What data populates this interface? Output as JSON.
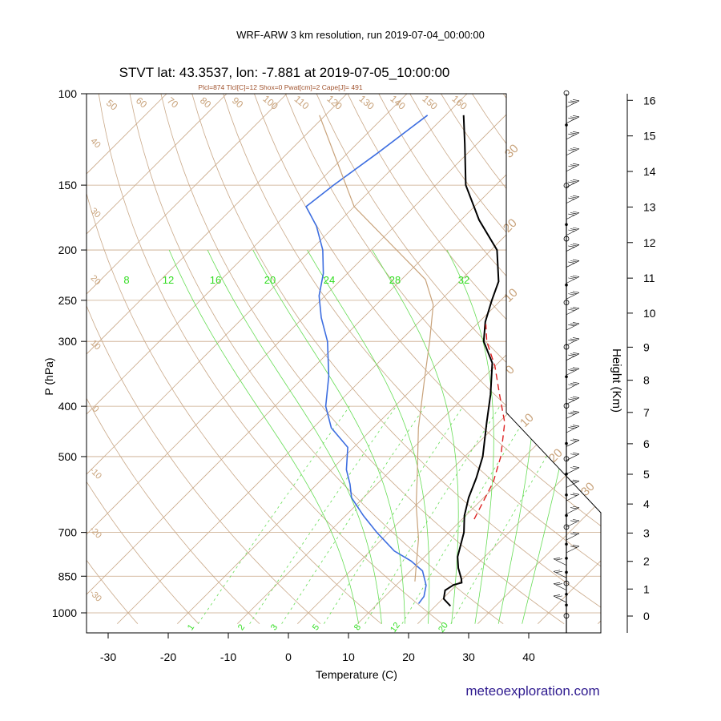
{
  "header": {
    "run_title": "WRF-ARW 3 km resolution, run 2019-07-04_00:00:00",
    "station_title": "STVT lat: 43.3537, lon: -7.881 at 2019-07-05_10:00:00",
    "indices": "Plcl=874 Tlcl[C]=12 Shox=0 Pwat[cm]=2 Cape[J]= 491",
    "credit": "meteoexploration.com"
  },
  "chart_data": {
    "type": "line",
    "xlabel": "Temperature (C)",
    "ylabel": "P (hPa)",
    "y2label": "Height (Km)",
    "xlim": [
      -33,
      50
    ],
    "ylim": [
      1050,
      100
    ],
    "y_scale": "log",
    "x_ticks": [
      "-30",
      "-20",
      "-10",
      "0",
      "10",
      "20",
      "30",
      "40"
    ],
    "pressure_ticks": [
      "100",
      "150",
      "200",
      "250",
      "300",
      "400",
      "500",
      "700",
      "850",
      "1000"
    ],
    "height_ticks": [
      "0",
      "1",
      "2",
      "3",
      "4",
      "5",
      "6",
      "7",
      "8",
      "9",
      "10",
      "11",
      "12",
      "13",
      "14",
      "15",
      "16"
    ],
    "dry_adiabat_labels": [
      "50",
      "60",
      "70",
      "80",
      "90",
      "100",
      "110",
      "120",
      "130",
      "140",
      "150",
      "160"
    ],
    "isotherm_labels": [
      "40",
      "30",
      "20",
      "10",
      "0",
      "-10",
      "-20",
      "-30"
    ],
    "isotherm_labels_right": [
      "30",
      "20",
      "10",
      "0",
      "10",
      "20",
      "30"
    ],
    "moist_adiabat_labels": [
      "8",
      "12",
      "16",
      "20",
      "24",
      "28",
      "32"
    ],
    "mixing_ratio_labels": [
      "1",
      "2",
      "3",
      "5",
      "8",
      "12",
      "20"
    ],
    "series": [
      {
        "kind": "temperature",
        "color": "#000000",
        "points": [
          [
            22.5,
            970
          ],
          [
            20.2,
            940
          ],
          [
            19.0,
            905
          ],
          [
            19.5,
            883
          ],
          [
            20.5,
            875
          ],
          [
            19.8,
            860
          ],
          [
            17.5,
            820
          ],
          [
            15.5,
            780
          ],
          [
            12.5,
            700
          ],
          [
            9.8,
            650
          ],
          [
            7.5,
            600
          ],
          [
            5.5,
            550
          ],
          [
            3.0,
            500
          ],
          [
            -2.0,
            430
          ],
          [
            -6.0,
            380
          ],
          [
            -11.0,
            330
          ],
          [
            -16.0,
            300
          ],
          [
            -19.0,
            275
          ],
          [
            -21.5,
            250
          ],
          [
            -23.5,
            230
          ],
          [
            -29.0,
            200
          ],
          [
            -37.0,
            175
          ],
          [
            -45.0,
            150
          ],
          [
            -52.0,
            125
          ],
          [
            -57.0,
            110
          ]
        ]
      },
      {
        "kind": "dewpoint",
        "color": "#3d6ee0",
        "points": [
          [
            16.8,
            960
          ],
          [
            16.5,
            930
          ],
          [
            15.0,
            885
          ],
          [
            12.0,
            830
          ],
          [
            8.5,
            795
          ],
          [
            4.0,
            760
          ],
          [
            -2.0,
            700
          ],
          [
            -7.0,
            650
          ],
          [
            -12.0,
            600
          ],
          [
            -14.5,
            565
          ],
          [
            -17.5,
            530
          ],
          [
            -21.0,
            480
          ],
          [
            -27.0,
            440
          ],
          [
            -31.5,
            400
          ],
          [
            -36.0,
            350
          ],
          [
            -42.0,
            300
          ],
          [
            -47.0,
            270
          ],
          [
            -51.0,
            245
          ],
          [
            -54.0,
            222
          ],
          [
            -58.0,
            200
          ],
          [
            -63.0,
            180
          ],
          [
            -68.0,
            165
          ],
          [
            -67.0,
            150
          ],
          [
            -65.0,
            130
          ],
          [
            -63.0,
            110
          ]
        ]
      },
      {
        "kind": "parcel",
        "color": "#dd2222",
        "points": [
          [
            12.0,
            660
          ],
          [
            9.0,
            560
          ],
          [
            6.0,
            500
          ],
          [
            1.0,
            430
          ],
          [
            -4.5,
            380
          ],
          [
            -10.0,
            335
          ],
          [
            -15.5,
            300
          ],
          [
            -18.5,
            278
          ]
        ]
      },
      {
        "kind": "reference-adiabat",
        "color": "#c8a27a",
        "points": [
          [
            12.5,
            870
          ],
          [
            6.0,
            720
          ],
          [
            0.0,
            620
          ],
          [
            -5.0,
            540
          ],
          [
            -12.5,
            440
          ],
          [
            -20.0,
            350
          ],
          [
            -25.0,
            300
          ],
          [
            -30.5,
            255
          ],
          [
            -36.0,
            228
          ],
          [
            -60.0,
            165
          ],
          [
            -81.0,
            110
          ]
        ]
      }
    ],
    "wind_profile": {
      "calm_circles_km": [
        0,
        1.2,
        3.2,
        5.5,
        7.2,
        9.0,
        10.3,
        12.1,
        13.6,
        16.2
      ],
      "dots_km": [
        0.4,
        0.8,
        1.6,
        2.1,
        2.6,
        3.6,
        4.3,
        5.0,
        6.0,
        8.1,
        10.8,
        12.5,
        15.3
      ]
    }
  }
}
